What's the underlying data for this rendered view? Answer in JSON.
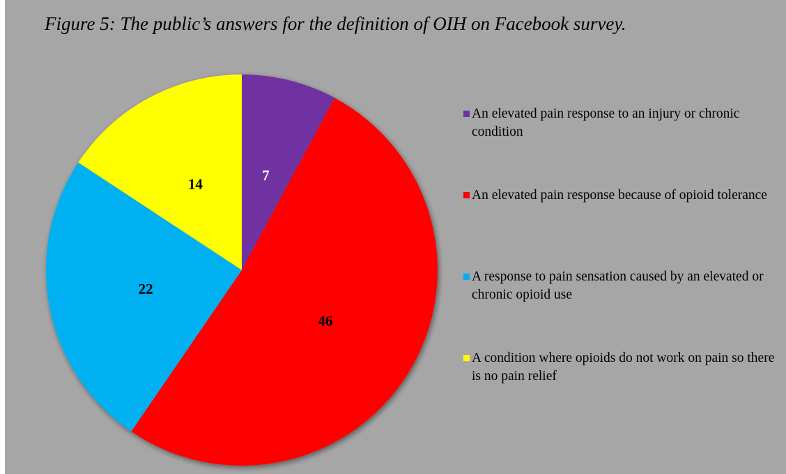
{
  "chart_data": {
    "type": "pie",
    "title": "Figure 5: The public’s answers for the definition of OIH on Facebook survey.",
    "slices": [
      {
        "label": "An elevated pain response to an injury or chronic condition",
        "value": 7,
        "color": "#7030a0",
        "label_color": "#ffffff"
      },
      {
        "label": "An elevated pain response because of opioid tolerance",
        "value": 46,
        "color": "#ff0000",
        "label_color": "#000000"
      },
      {
        "label": "A response to pain sensation caused by an elevated or chronic opioid use",
        "value": 22,
        "color": "#00b0f0",
        "label_color": "#000000"
      },
      {
        "label": "A condition where opioids do not work on pain so there is no pain relief",
        "value": 14,
        "color": "#ffff00",
        "label_color": "#000000"
      }
    ],
    "start_angle": "12 o'clock",
    "direction": "clockwise",
    "legend_position": "right",
    "background_color": "#a6a6a6"
  }
}
